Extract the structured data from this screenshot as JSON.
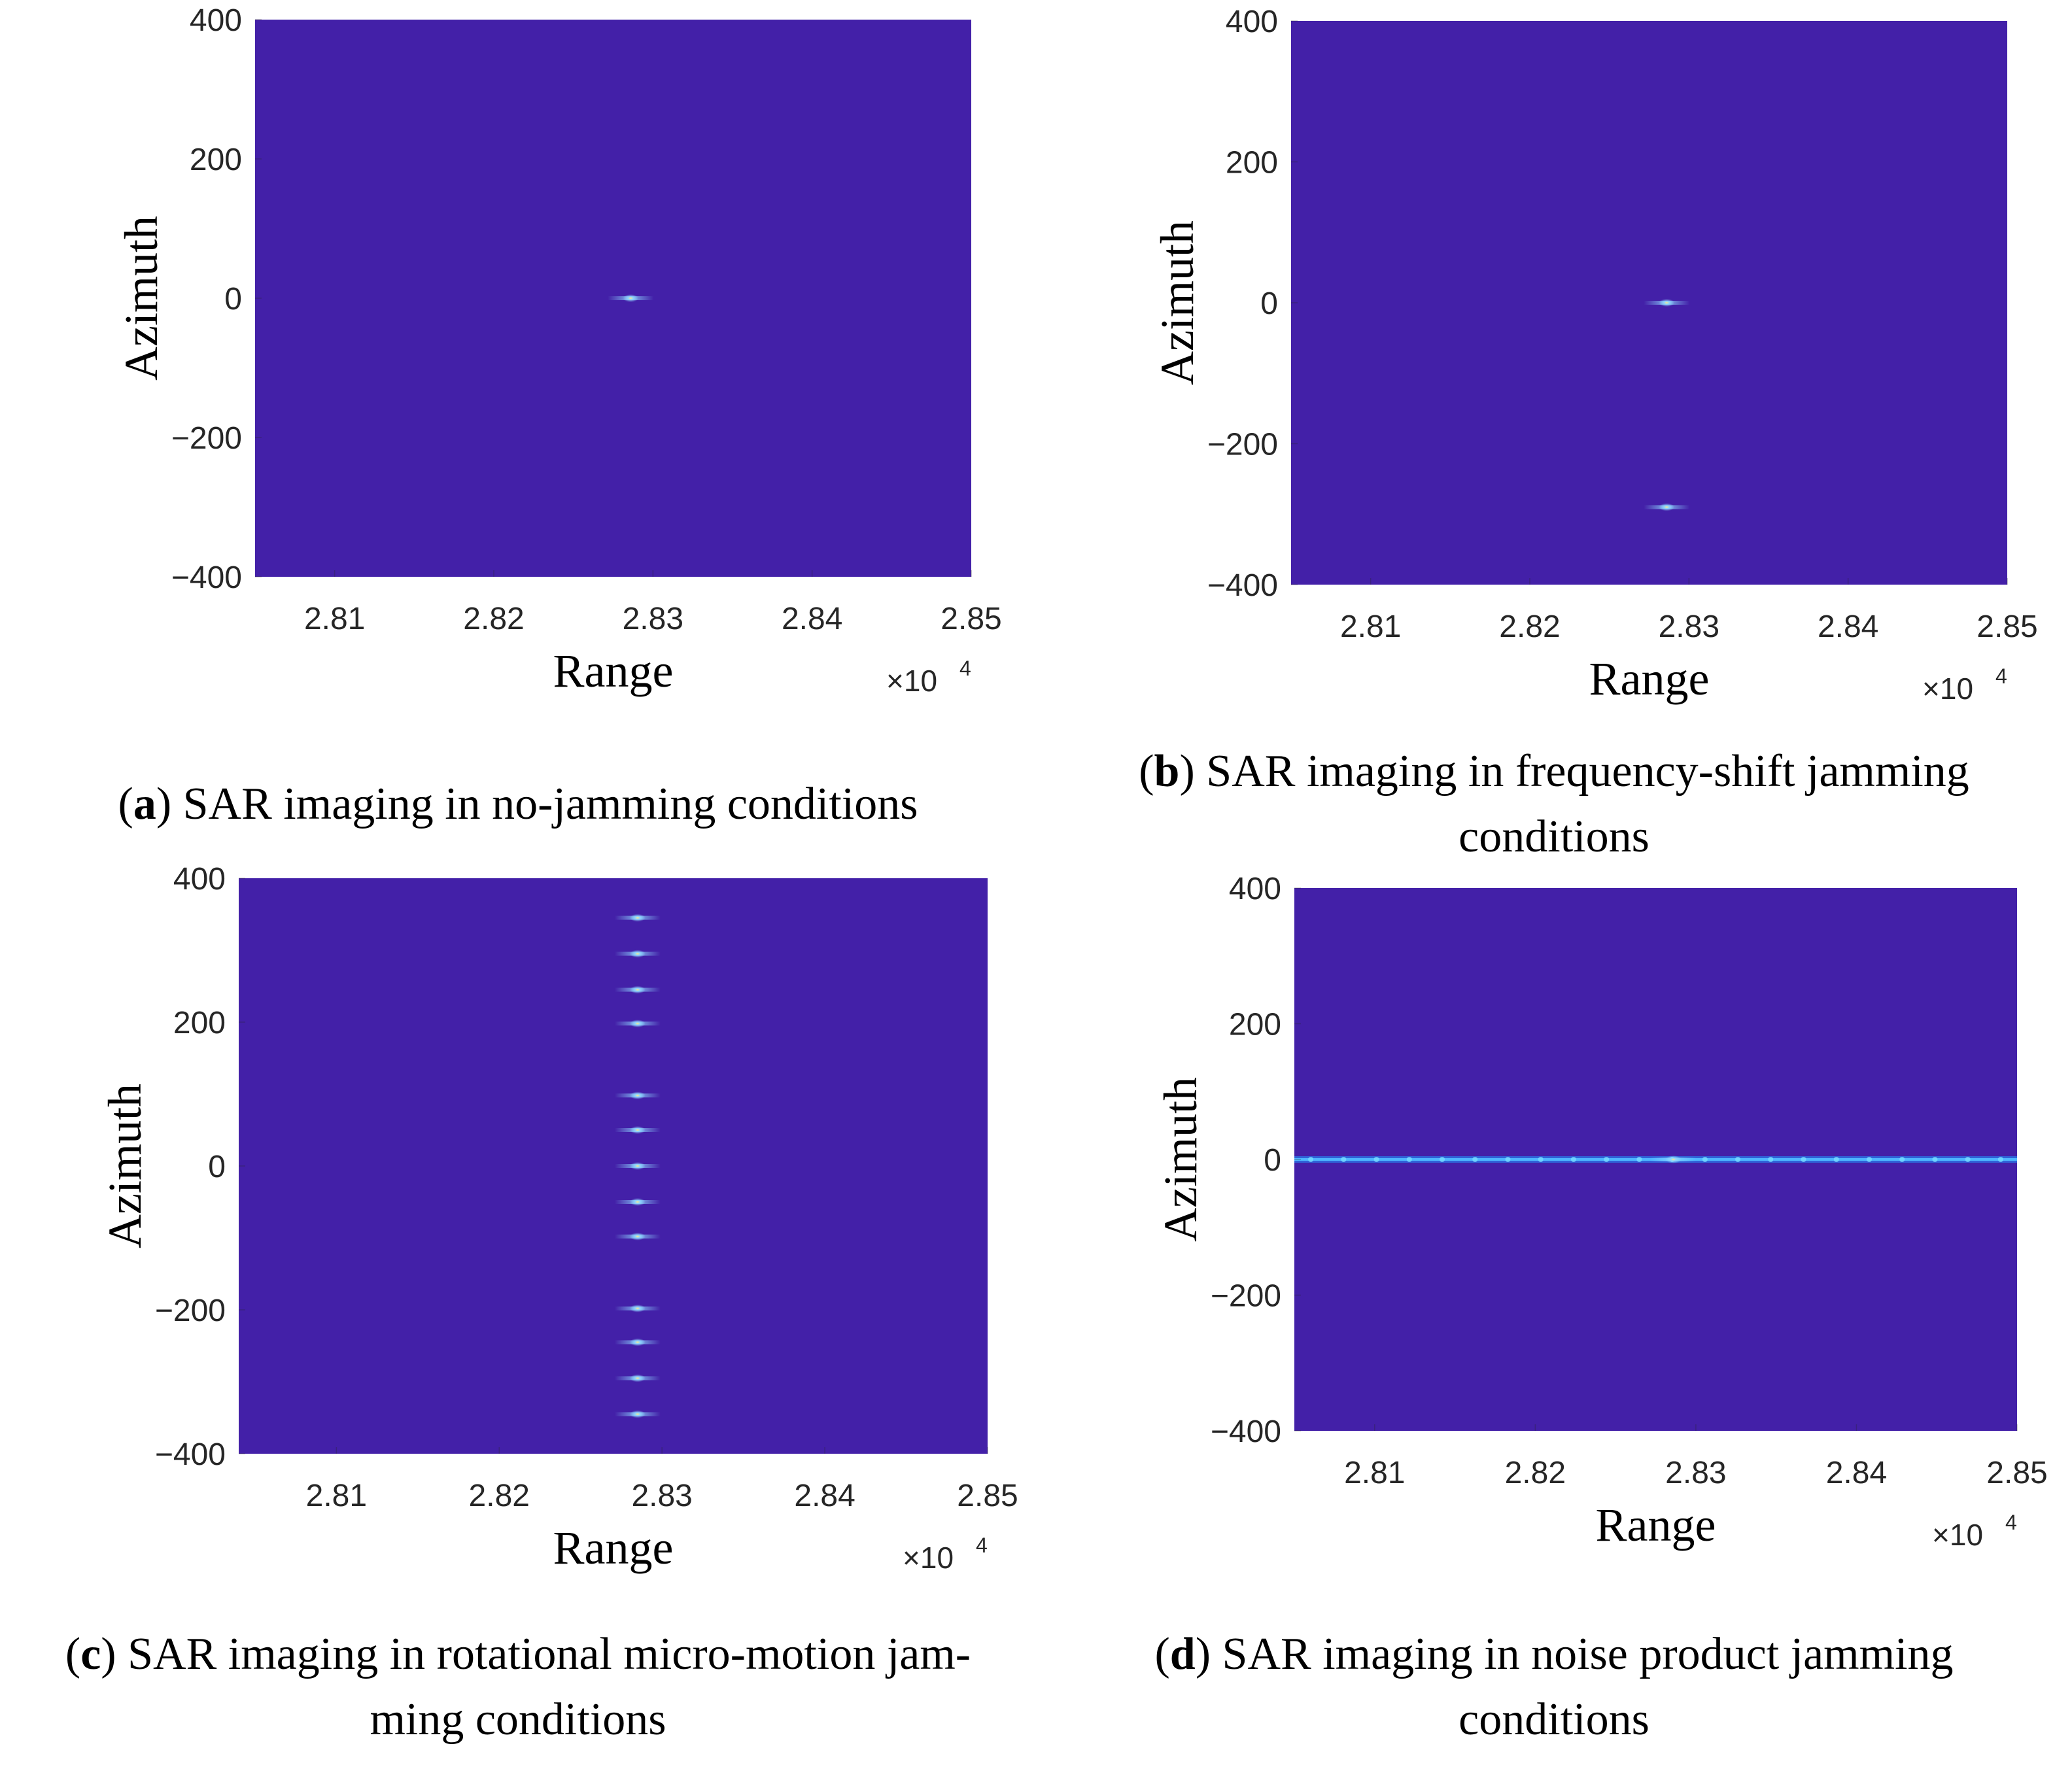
{
  "colors": {
    "background": "#4320a8",
    "hotspot": "#8fd8ff",
    "tick_mark": "#262626"
  },
  "panels": [
    {
      "letter": "a",
      "caption_lines": [
        ") SAR imaging in no-jamming conditions"
      ],
      "chart_data": {
        "type": "heatmap",
        "title": "",
        "xlabel": "Range",
        "ylabel": "Azimuth",
        "xlim": [
          28050,
          28500
        ],
        "ylim": [
          -400,
          400
        ],
        "x_ticks": [
          28100,
          28200,
          28300,
          28400,
          28500
        ],
        "x_tick_labels": [
          "2.81",
          "2.82",
          "2.83",
          "2.84",
          "2.85"
        ],
        "y_ticks": [
          400,
          200,
          0,
          -200,
          -400
        ],
        "y_tick_labels": [
          "400",
          "200",
          "0",
          "−200",
          "−400"
        ],
        "x_multiplier_base": "×10",
        "x_multiplier_exp": "4",
        "point_targets": [
          {
            "range": 28286,
            "azimuth": 0
          }
        ],
        "line_targets": []
      }
    },
    {
      "letter": "b",
      "caption_lines": [
        ") SAR imaging in frequency-shift jamming",
        "conditions"
      ],
      "chart_data": {
        "type": "heatmap",
        "title": "",
        "xlabel": "Range",
        "ylabel": "Azimuth",
        "xlim": [
          28050,
          28500
        ],
        "ylim": [
          -400,
          400
        ],
        "x_ticks": [
          28100,
          28200,
          28300,
          28400,
          28500
        ],
        "x_tick_labels": [
          "2.81",
          "2.82",
          "2.83",
          "2.84",
          "2.85"
        ],
        "y_ticks": [
          400,
          200,
          0,
          -200,
          -400
        ],
        "y_tick_labels": [
          "400",
          "200",
          "0",
          "−200",
          "−400"
        ],
        "x_multiplier_base": "×10",
        "x_multiplier_exp": "4",
        "point_targets": [
          {
            "range": 28286,
            "azimuth": 0
          },
          {
            "range": 28286,
            "azimuth": -290
          }
        ],
        "line_targets": []
      }
    },
    {
      "letter": "c",
      "caption_lines": [
        ") SAR imaging in rotational micro-motion jam-",
        "ming conditions"
      ],
      "chart_data": {
        "type": "heatmap",
        "title": "",
        "xlabel": "Range",
        "ylabel": "Azimuth",
        "xlim": [
          28040,
          28500
        ],
        "ylim": [
          -400,
          400
        ],
        "x_ticks": [
          28100,
          28200,
          28300,
          28400,
          28500
        ],
        "x_tick_labels": [
          "2.81",
          "2.82",
          "2.83",
          "2.84",
          "2.85"
        ],
        "y_ticks": [
          400,
          200,
          0,
          -200,
          -400
        ],
        "y_tick_labels": [
          "400",
          "200",
          "0",
          "−200",
          "−400"
        ],
        "x_multiplier_base": "×10",
        "x_multiplier_exp": "4",
        "point_targets": [
          {
            "range": 28285,
            "azimuth": 345
          },
          {
            "range": 28285,
            "azimuth": 295
          },
          {
            "range": 28285,
            "azimuth": 245
          },
          {
            "range": 28285,
            "azimuth": 198
          },
          {
            "range": 28285,
            "azimuth": 98
          },
          {
            "range": 28285,
            "azimuth": 50
          },
          {
            "range": 28285,
            "azimuth": 0
          },
          {
            "range": 28285,
            "azimuth": -50
          },
          {
            "range": 28285,
            "azimuth": -98
          },
          {
            "range": 28285,
            "azimuth": -198
          },
          {
            "range": 28285,
            "azimuth": -245
          },
          {
            "range": 28285,
            "azimuth": -295
          },
          {
            "range": 28285,
            "azimuth": -345
          }
        ],
        "line_targets": []
      }
    },
    {
      "letter": "d",
      "caption_lines": [
        ") SAR imaging in noise product jamming",
        "conditions"
      ],
      "chart_data": {
        "type": "heatmap",
        "title": "",
        "xlabel": "Range",
        "ylabel": "Azimuth",
        "xlim": [
          28050,
          28500
        ],
        "ylim": [
          -400,
          400
        ],
        "x_ticks": [
          28100,
          28200,
          28300,
          28400,
          28500
        ],
        "x_tick_labels": [
          "2.81",
          "2.82",
          "2.83",
          "2.84",
          "2.85"
        ],
        "y_ticks": [
          400,
          200,
          0,
          -200,
          -400
        ],
        "y_tick_labels": [
          "400",
          "200",
          "0",
          "−200",
          "−400"
        ],
        "x_multiplier_base": "×10",
        "x_multiplier_exp": "4",
        "point_targets": [
          {
            "range": 28286,
            "azimuth": 0
          }
        ],
        "line_targets": [
          {
            "azimuth": 0,
            "range_from": 28050,
            "range_to": 28500
          }
        ]
      }
    }
  ]
}
